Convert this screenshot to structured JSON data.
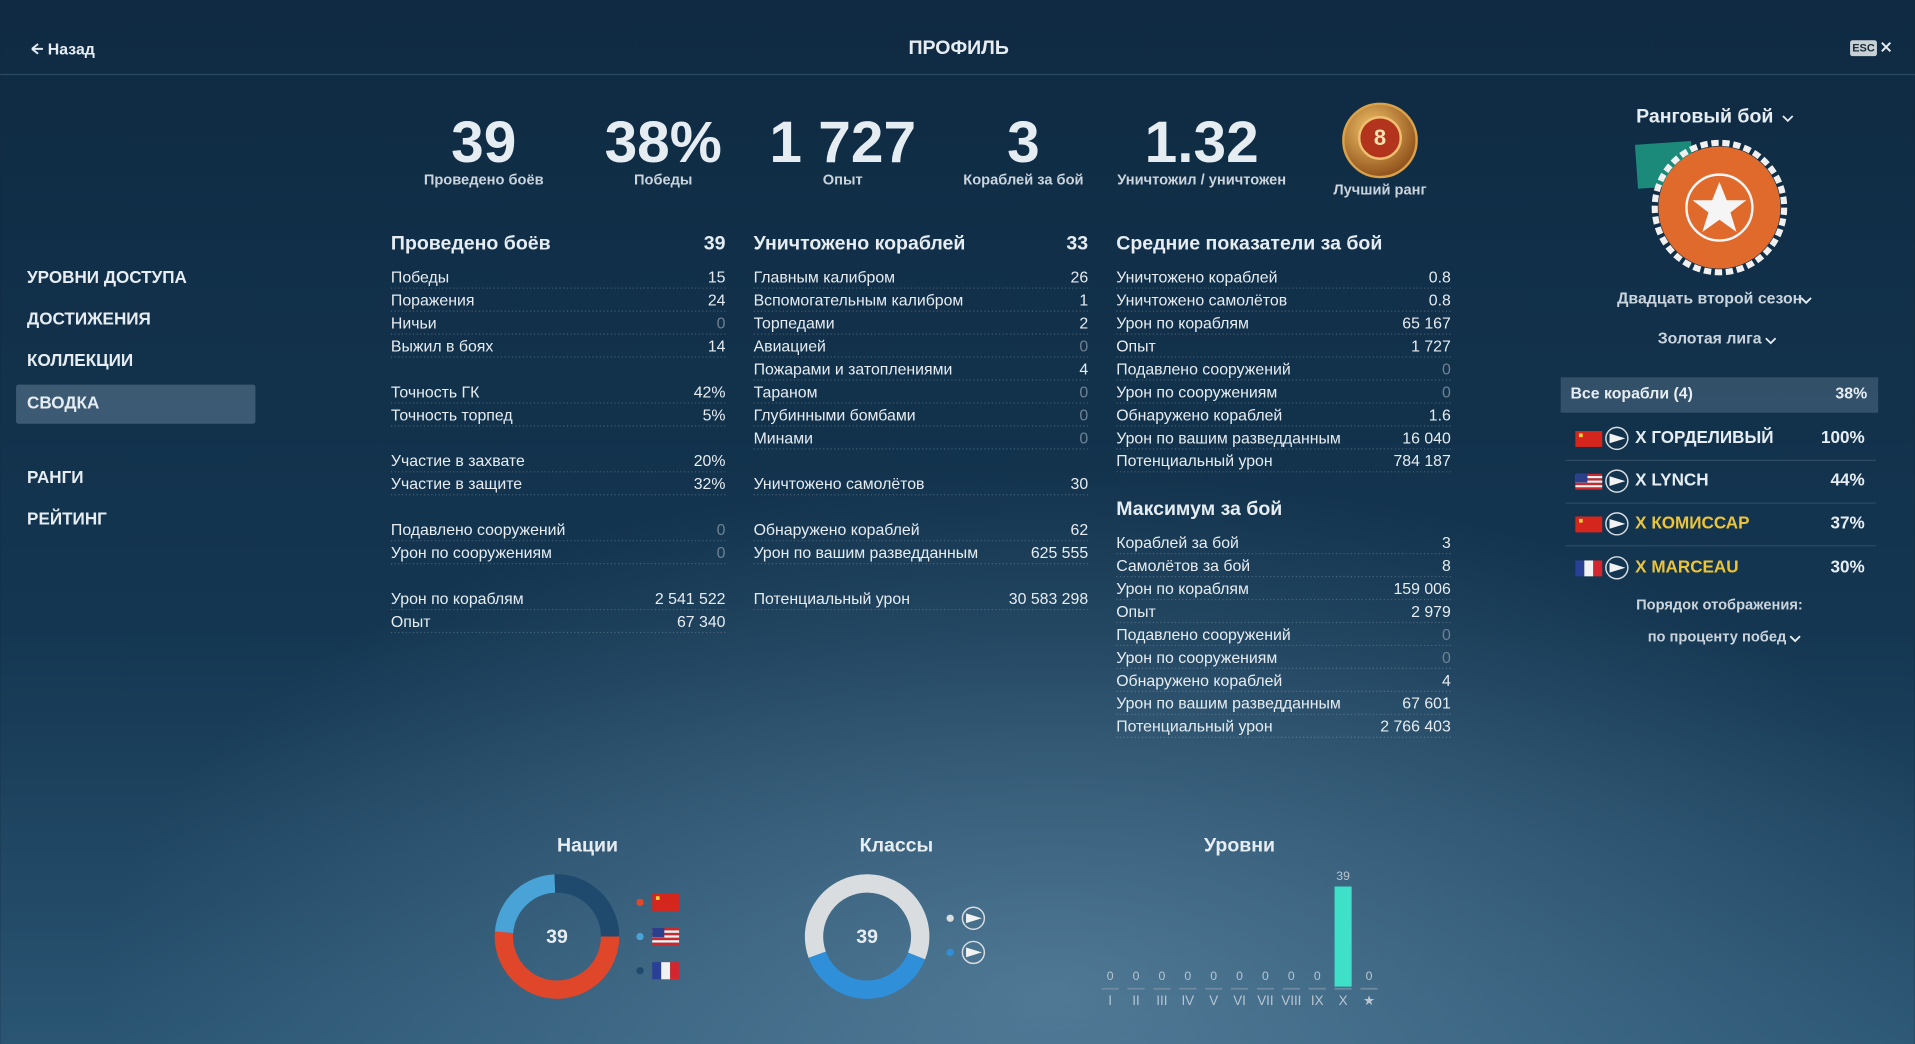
{
  "header": {
    "back": "Назад",
    "title": "ПРОФИЛЬ",
    "esc": "ESC"
  },
  "nav": {
    "items": [
      "УРОВНИ ДОСТУПА",
      "ДОСТИЖЕНИЯ",
      "КОЛЛЕКЦИИ",
      "СВОДКА",
      "РАНГИ",
      "РЕЙТИНГ"
    ],
    "selected": 3
  },
  "summary": [
    {
      "value": "39",
      "label": "Проведено боёв"
    },
    {
      "value": "38%",
      "label": "Победы"
    },
    {
      "value": "1 727",
      "label": "Опыт"
    },
    {
      "value": "3",
      "label": "Кораблей за бой"
    },
    {
      "value": "1.32",
      "label": "Уничтожил / уничтожен"
    }
  ],
  "best_rank": {
    "value": "8",
    "label": "Лучший ранг"
  },
  "stats": [
    [
      {
        "title": "Проведено боёв",
        "value": "39",
        "groups": [
          [
            [
              "Победы",
              "15"
            ],
            [
              "Поражения",
              "24"
            ],
            [
              "Ничьи",
              "0"
            ],
            [
              "Выжил в боях",
              "14"
            ]
          ],
          [
            [
              "Точность ГК",
              "42%"
            ],
            [
              "Точность торпед",
              "5%"
            ]
          ],
          [
            [
              "Участие в захвате",
              "20%"
            ],
            [
              "Участие в защите",
              "32%"
            ]
          ],
          [
            [
              "Подавлено сооружений",
              "0"
            ],
            [
              "Урон по сооружениям",
              "0"
            ]
          ],
          [
            [
              "Урон по кораблям",
              "2 541 522"
            ],
            [
              "Опыт",
              "67 340"
            ]
          ]
        ]
      }
    ],
    [
      {
        "title": "Уничтожено кораблей",
        "value": "33",
        "groups": [
          [
            [
              "Главным калибром",
              "26"
            ],
            [
              "Вспомогательным калибром",
              "1"
            ],
            [
              "Торпедами",
              "2"
            ],
            [
              "Авиацией",
              "0"
            ],
            [
              "Пожарами и затоплениями",
              "4"
            ],
            [
              "Тараном",
              "0"
            ],
            [
              "Глубинными бомбами",
              "0"
            ],
            [
              "Минами",
              "0"
            ]
          ],
          [
            [
              "Уничтожено самолётов",
              "30"
            ]
          ],
          [
            [
              "Обнаружено кораблей",
              "62"
            ],
            [
              "Урон по вашим разведданным",
              "625 555"
            ]
          ],
          [
            [
              "Потенциальный урон",
              "30 583 298"
            ]
          ]
        ]
      }
    ],
    [
      {
        "title": "Средние показатели за бой",
        "groups": [
          [
            [
              "Уничтожено кораблей",
              "0.8"
            ],
            [
              "Уничтожено самолётов",
              "0.8"
            ],
            [
              "Урон по кораблям",
              "65 167"
            ],
            [
              "Опыт",
              "1 727"
            ],
            [
              "Подавлено сооружений",
              "0"
            ],
            [
              "Урон по сооружениям",
              "0"
            ],
            [
              "Обнаружено кораблей",
              "1.6"
            ],
            [
              "Урон по вашим разведданным",
              "16 040"
            ],
            [
              "Потенциальный урон",
              "784 187"
            ]
          ]
        ]
      },
      {
        "title": "Максимум за бой",
        "groups": [
          [
            [
              "Кораблей за бой",
              "3"
            ],
            [
              "Самолётов за бой",
              "8"
            ],
            [
              "Урон по кораблям",
              "159 006"
            ],
            [
              "Опыт",
              "2 979"
            ],
            [
              "Подавлено сооружений",
              "0"
            ],
            [
              "Урон по сооружениям",
              "0"
            ],
            [
              "Обнаружено кораблей",
              "4"
            ],
            [
              "Урон по вашим разведданным",
              "67 601"
            ],
            [
              "Потенциальный урон",
              "2 766 403"
            ]
          ]
        ]
      }
    ]
  ],
  "ranked": {
    "mode": "Ранговый бой",
    "season": "Двадцать второй сезон",
    "league": "Золотая лига"
  },
  "ships": {
    "header": {
      "label": "Все корабли (4)",
      "value": "38%"
    },
    "rows": [
      {
        "flag": "ussr",
        "name": "X ГОРДЕЛИВЫЙ",
        "value": "100%",
        "special": false
      },
      {
        "flag": "usa",
        "name": "X LYNCH",
        "value": "44%",
        "special": false
      },
      {
        "flag": "ussr",
        "name": "X КОМИССАР",
        "value": "37%",
        "special": true
      },
      {
        "flag": "france",
        "name": "X MARCEAU",
        "value": "30%",
        "special": true
      }
    ],
    "sort_label": "Порядок отображения:",
    "sort_value": "по проценту побед"
  },
  "chart_data": [
    {
      "type": "pie",
      "title": "Нации",
      "center_label": 39,
      "values": [
        20,
        9,
        10
      ],
      "colors": [
        "#e0472a",
        "#4aa3d6",
        "#1f4a6e"
      ],
      "legend_flags": [
        "ussr",
        "usa",
        "france"
      ]
    },
    {
      "type": "pie",
      "title": "Классы",
      "center_label": 39,
      "values": [
        24,
        15
      ],
      "colors": [
        "#d9dde0",
        "#2f8fd8"
      ]
    },
    {
      "type": "bar",
      "title": "Уровни",
      "categories": [
        "I",
        "II",
        "III",
        "IV",
        "V",
        "VI",
        "VII",
        "VIII",
        "IX",
        "X",
        "★"
      ],
      "values": [
        0,
        0,
        0,
        0,
        0,
        0,
        0,
        0,
        0,
        39,
        0
      ],
      "color": "#3ee0c8"
    }
  ]
}
